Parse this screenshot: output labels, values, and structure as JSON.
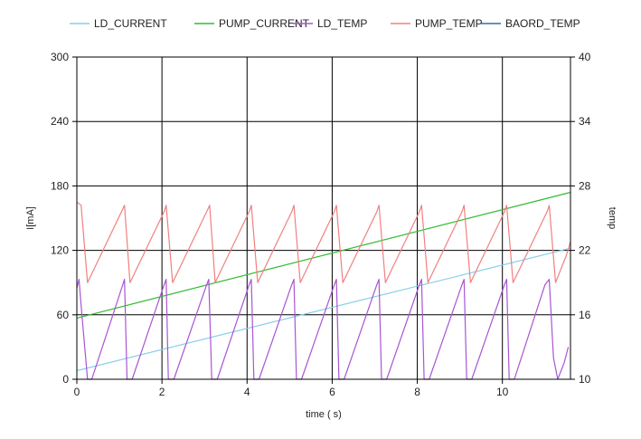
{
  "chart_data": {
    "type": "line",
    "title": "",
    "xlabel": "time ( s)",
    "ylabel": "I[mA]",
    "y2label": "temp",
    "xlim": [
      0,
      11.6
    ],
    "ylim": [
      0,
      300
    ],
    "y2lim": [
      10,
      40
    ],
    "xticks": [
      0,
      2,
      4,
      6,
      8,
      10
    ],
    "yticks": [
      0,
      60,
      120,
      180,
      240,
      300
    ],
    "y2ticks": [
      10,
      16,
      22,
      28,
      34,
      40
    ],
    "grid": true,
    "legend_position": "top",
    "series": [
      {
        "name": "LD_CURRENT",
        "color": "#87ceeb",
        "axis": "left",
        "x": [
          0,
          11.6
        ],
        "y": [
          8,
          122
        ]
      },
      {
        "name": "PUMP_CURRENT",
        "color": "#33bb33",
        "axis": "left",
        "x": [
          0,
          11.6
        ],
        "y": [
          57,
          174
        ]
      },
      {
        "name": "LD_TEMP",
        "color": "#a855d4",
        "axis": "right",
        "x": [
          0,
          0.05,
          0.12,
          0.25,
          0.35,
          1.08,
          1.12,
          1.18,
          1.3,
          2.05,
          2.1,
          2.15,
          2.28,
          3.05,
          3.1,
          3.17,
          3.3,
          4.05,
          4.1,
          4.16,
          4.28,
          5.05,
          5.1,
          5.16,
          5.28,
          6.05,
          6.1,
          6.16,
          6.28,
          7.05,
          7.1,
          7.16,
          7.28,
          8.05,
          8.1,
          8.16,
          8.28,
          9.05,
          9.1,
          9.16,
          9.28,
          10.05,
          10.1,
          10.16,
          10.28,
          11.0,
          11.1,
          11.2,
          11.3,
          11.45,
          11.55
        ],
        "y": [
          18.5,
          19.3,
          16,
          10,
          10,
          18.8,
          19.3,
          10,
          10,
          18.8,
          19.3,
          10,
          10,
          18.8,
          19.3,
          10,
          10,
          18.8,
          19.3,
          10,
          10,
          18.8,
          19.3,
          10,
          10,
          18.8,
          19.3,
          10,
          10,
          18.8,
          19.3,
          10,
          10,
          18.8,
          19.3,
          10,
          10,
          18.8,
          19.3,
          10,
          10,
          18.8,
          19.3,
          10,
          10,
          18.8,
          19.3,
          12,
          10,
          11.5,
          13
        ]
      },
      {
        "name": "PUMP_TEMP",
        "color": "#f08080",
        "axis": "right",
        "x": [
          0,
          0.1,
          0.25,
          1.05,
          1.12,
          1.25,
          2.05,
          2.1,
          2.25,
          3.05,
          3.12,
          3.25,
          4.05,
          4.1,
          4.25,
          5.05,
          5.1,
          5.25,
          6.05,
          6.1,
          6.25,
          7.05,
          7.1,
          7.25,
          8.05,
          8.1,
          8.25,
          9.05,
          9.1,
          9.25,
          10.05,
          10.1,
          10.25,
          11.05,
          11.1,
          11.25,
          11.5,
          11.6
        ],
        "y": [
          26.5,
          26.2,
          19,
          25.6,
          26.2,
          19,
          25.6,
          26.2,
          19,
          25.6,
          26.2,
          19,
          25.6,
          26.2,
          19,
          25.6,
          26.2,
          19,
          25.6,
          26.2,
          19,
          25.6,
          26.2,
          19,
          25.6,
          26.2,
          19,
          25.6,
          26.2,
          19,
          25.6,
          26.2,
          19,
          25.6,
          26.2,
          19,
          21.5,
          22.8
        ]
      },
      {
        "name": "BAORD_TEMP",
        "color": "#2e6ea6",
        "axis": "right",
        "x": [],
        "y": []
      }
    ]
  }
}
